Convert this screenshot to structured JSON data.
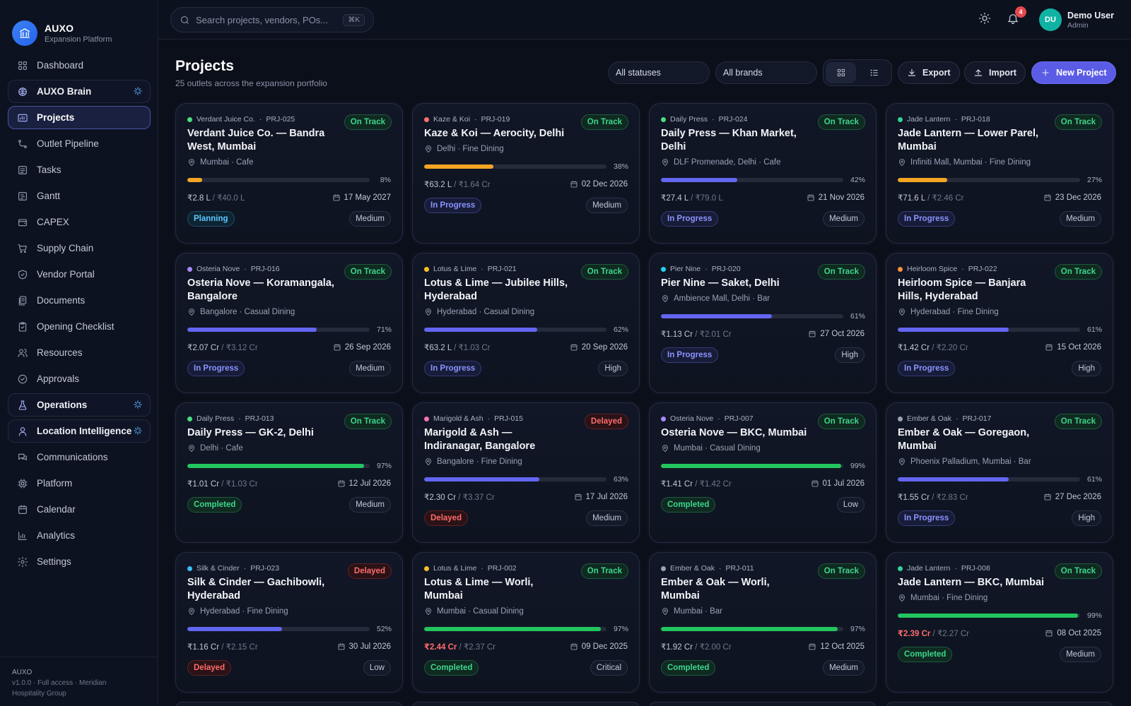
{
  "brand": {
    "name": "AUXO",
    "subtitle": "Expansion Platform"
  },
  "sidebar": {
    "items": [
      {
        "label": "Dashboard",
        "icon": "grid-icon"
      },
      {
        "label": "AUXO Brain",
        "icon": "brain-icon"
      },
      {
        "label": "Projects",
        "icon": "folder-icon"
      },
      {
        "label": "Outlet Pipeline",
        "icon": "pipeline-icon"
      },
      {
        "label": "Tasks",
        "icon": "tasks-icon"
      },
      {
        "label": "Gantt",
        "icon": "gantt-icon"
      },
      {
        "label": "CAPEX",
        "icon": "wallet-icon"
      },
      {
        "label": "Supply Chain",
        "icon": "cart-icon"
      },
      {
        "label": "Vendor Portal",
        "icon": "shield-icon"
      },
      {
        "label": "Documents",
        "icon": "documents-icon"
      },
      {
        "label": "Opening Checklist",
        "icon": "checklist-icon"
      },
      {
        "label": "Resources",
        "icon": "users-icon"
      },
      {
        "label": "Approvals",
        "icon": "check-circle-icon"
      },
      {
        "label": "Operations",
        "icon": "flask-icon"
      },
      {
        "label": "Location Intelligence",
        "icon": "map-pin-icon"
      },
      {
        "label": "Communications",
        "icon": "chat-icon"
      },
      {
        "label": "Platform",
        "icon": "chip-icon"
      },
      {
        "label": "Calendar",
        "icon": "calendar-icon"
      },
      {
        "label": "Analytics",
        "icon": "bar-chart-icon"
      },
      {
        "label": "Settings",
        "icon": "gear-icon"
      }
    ],
    "footer": {
      "name": "AUXO",
      "line1": "v1.0.0 · Full access · Meridian",
      "line2": "Hospitality Group"
    }
  },
  "topbar": {
    "search_placeholder": "Search projects, vendors, POs...",
    "shortcut": "⌘K",
    "notifications_count": "4",
    "user": {
      "initials": "DU",
      "name": "Demo User",
      "role": "Admin"
    }
  },
  "header": {
    "title": "Projects",
    "subtitle": "25 outlets across the expansion portfolio",
    "status_filter": "All statuses",
    "brand_filter": "All brands",
    "export_label": "Export",
    "import_label": "Import",
    "new_label": "New Project"
  },
  "colors": {
    "accent": "#5b5ce6",
    "on_track": "#3dd68c",
    "delayed": "#ff6b6b",
    "in_progress": "#6366f1",
    "planning": "#5cc8ff",
    "progress_low": "#f5a524",
    "progress_done": "#22c55e"
  },
  "projects": [
    {
      "brand": "Verdant Juice Co.",
      "id": "PRJ-025",
      "dot": "#4ade80",
      "health": "On Track",
      "title": "Verdant Juice Co. — Bandra West, Mumbai",
      "location": "Mumbai · Cafe",
      "progress": 8,
      "spent": "₹2.8 L",
      "budget": "₹40.0 L",
      "over": false,
      "date": "17 May 2027",
      "status": "Planning",
      "priority": "Medium"
    },
    {
      "brand": "Kaze & Koi",
      "id": "PRJ-019",
      "dot": "#f87171",
      "health": "On Track",
      "title": "Kaze & Koi — Aerocity, Delhi",
      "location": "Delhi · Fine Dining",
      "progress": 38,
      "spent": "₹63.2 L",
      "budget": "₹1.64 Cr",
      "over": false,
      "date": "02 Dec 2026",
      "status": "In Progress",
      "priority": "Medium"
    },
    {
      "brand": "Daily Press",
      "id": "PRJ-024",
      "dot": "#4ade80",
      "health": "On Track",
      "title": "Daily Press — Khan Market, Delhi",
      "location": "DLF Promenade, Delhi · Cafe",
      "progress": 42,
      "spent": "₹27.4 L",
      "budget": "₹79.0 L",
      "over": false,
      "date": "21 Nov 2026",
      "status": "In Progress",
      "priority": "Medium"
    },
    {
      "brand": "Jade Lantern",
      "id": "PRJ-018",
      "dot": "#34d399",
      "health": "On Track",
      "title": "Jade Lantern — Lower Parel, Mumbai",
      "location": "Infiniti Mall, Mumbai · Fine Dining",
      "progress": 27,
      "spent": "₹71.6 L",
      "budget": "₹2.46 Cr",
      "over": false,
      "date": "23 Dec 2026",
      "status": "In Progress",
      "priority": "Medium"
    },
    {
      "brand": "Osteria Nove",
      "id": "PRJ-016",
      "dot": "#a78bfa",
      "health": "On Track",
      "title": "Osteria Nove — Koramangala, Bangalore",
      "location": "Bangalore · Casual Dining",
      "progress": 71,
      "spent": "₹2.07 Cr",
      "budget": "₹3.12 Cr",
      "over": false,
      "date": "26 Sep 2026",
      "status": "In Progress",
      "priority": "Medium"
    },
    {
      "brand": "Lotus & Lime",
      "id": "PRJ-021",
      "dot": "#fbbf24",
      "health": "On Track",
      "title": "Lotus & Lime — Jubilee Hills, Hyderabad",
      "location": "Hyderabad · Casual Dining",
      "progress": 62,
      "spent": "₹63.2 L",
      "budget": "₹1.03 Cr",
      "over": false,
      "date": "20 Sep 2026",
      "status": "In Progress",
      "priority": "High"
    },
    {
      "brand": "Pier Nine",
      "id": "PRJ-020",
      "dot": "#22d3ee",
      "health": "On Track",
      "title": "Pier Nine — Saket, Delhi",
      "location": "Ambience Mall, Delhi · Bar",
      "progress": 61,
      "spent": "₹1.13 Cr",
      "budget": "₹2.01 Cr",
      "over": false,
      "date": "27 Oct 2026",
      "status": "In Progress",
      "priority": "High"
    },
    {
      "brand": "Heirloom Spice",
      "id": "PRJ-022",
      "dot": "#fb923c",
      "health": "On Track",
      "title": "Heirloom Spice — Banjara Hills, Hyderabad",
      "location": "Hyderabad · Fine Dining",
      "progress": 61,
      "spent": "₹1.42 Cr",
      "budget": "₹2.20 Cr",
      "over": false,
      "date": "15 Oct 2026",
      "status": "In Progress",
      "priority": "High"
    },
    {
      "brand": "Daily Press",
      "id": "PRJ-013",
      "dot": "#4ade80",
      "health": "On Track",
      "title": "Daily Press — GK-2, Delhi",
      "location": "Delhi · Cafe",
      "progress": 97,
      "spent": "₹1.01 Cr",
      "budget": "₹1.03 Cr",
      "over": false,
      "date": "12 Jul 2026",
      "status": "Completed",
      "priority": "Medium"
    },
    {
      "brand": "Marigold & Ash",
      "id": "PRJ-015",
      "dot": "#f472b6",
      "health": "Delayed",
      "title": "Marigold & Ash — Indiranagar, Bangalore",
      "location": "Bangalore · Fine Dining",
      "progress": 63,
      "spent": "₹2.30 Cr",
      "budget": "₹3.37 Cr",
      "over": false,
      "date": "17 Jul 2026",
      "status": "Delayed",
      "priority": "Medium"
    },
    {
      "brand": "Osteria Nove",
      "id": "PRJ-007",
      "dot": "#a78bfa",
      "health": "On Track",
      "title": "Osteria Nove — BKC, Mumbai",
      "location": "Mumbai · Casual Dining",
      "progress": 99,
      "spent": "₹1.41 Cr",
      "budget": "₹1.42 Cr",
      "over": false,
      "date": "01 Jul 2026",
      "status": "Completed",
      "priority": "Low"
    },
    {
      "brand": "Ember & Oak",
      "id": "PRJ-017",
      "dot": "#9ca3af",
      "health": "On Track",
      "title": "Ember & Oak — Goregaon, Mumbai",
      "location": "Phoenix Palladium, Mumbai · Bar",
      "progress": 61,
      "spent": "₹1.55 Cr",
      "budget": "₹2.83 Cr",
      "over": false,
      "date": "27 Dec 2026",
      "status": "In Progress",
      "priority": "High"
    },
    {
      "brand": "Silk & Cinder",
      "id": "PRJ-023",
      "dot": "#38bdf8",
      "health": "Delayed",
      "title": "Silk & Cinder — Gachibowli, Hyderabad",
      "location": "Hyderabad · Fine Dining",
      "progress": 52,
      "spent": "₹1.16 Cr",
      "budget": "₹2.15 Cr",
      "over": false,
      "date": "30 Jul 2026",
      "status": "Delayed",
      "priority": "Low"
    },
    {
      "brand": "Lotus & Lime",
      "id": "PRJ-002",
      "dot": "#fbbf24",
      "health": "On Track",
      "title": "Lotus & Lime — Worli, Mumbai",
      "location": "Mumbai · Casual Dining",
      "progress": 97,
      "spent": "₹2.44 Cr",
      "budget": "₹2.37 Cr",
      "over": true,
      "date": "09 Dec 2025",
      "status": "Completed",
      "priority": "Critical"
    },
    {
      "brand": "Ember & Oak",
      "id": "PRJ-011",
      "dot": "#9ca3af",
      "health": "On Track",
      "title": "Ember & Oak — Worli, Mumbai",
      "location": "Mumbai · Bar",
      "progress": 97,
      "spent": "₹1.92 Cr",
      "budget": "₹2.00 Cr",
      "over": false,
      "date": "12 Oct 2025",
      "status": "Completed",
      "priority": "Medium"
    },
    {
      "brand": "Jade Lantern",
      "id": "PRJ-008",
      "dot": "#34d399",
      "health": "On Track",
      "title": "Jade Lantern — BKC, Mumbai",
      "location": "Mumbai · Fine Dining",
      "progress": 99,
      "spent": "₹2.39 Cr",
      "budget": "₹2.27 Cr",
      "over": true,
      "date": "08 Oct 2025",
      "status": "Completed",
      "priority": "Medium"
    }
  ]
}
